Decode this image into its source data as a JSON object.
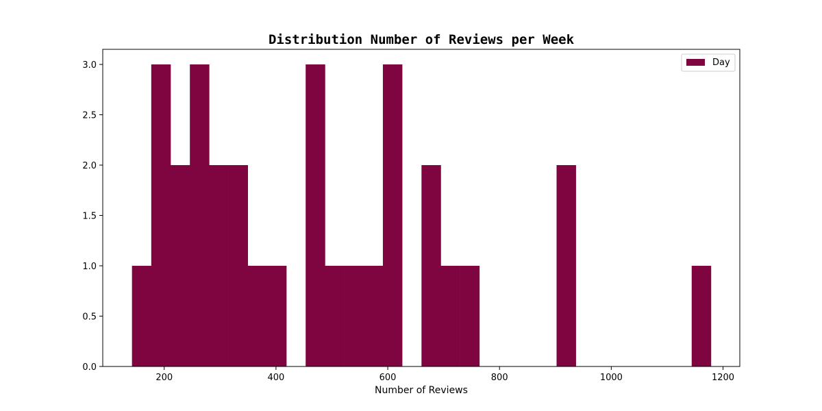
{
  "chart_data": {
    "type": "bar",
    "title": "Distribution Number of Reviews per Week",
    "xlabel": "Number of Reviews",
    "ylabel": "",
    "xlim": [
      90,
      1230
    ],
    "ylim": [
      0,
      3.15
    ],
    "x_ticks": [
      200,
      400,
      600,
      800,
      1000,
      1200
    ],
    "y_ticks": [
      0.0,
      0.5,
      1.0,
      1.5,
      2.0,
      2.5,
      3.0
    ],
    "x_tick_labels": [
      "200",
      "400",
      "600",
      "800",
      "1000",
      "1200"
    ],
    "y_tick_labels": [
      "0.0",
      "0.5",
      "1.0",
      "1.5",
      "2.0",
      "2.5",
      "3.0"
    ],
    "grid": false,
    "legend_position": "top-right",
    "series": [
      {
        "name": "Day",
        "color": "#7f0540",
        "bins": [
          {
            "x0": 142.3,
            "x1": 176.8,
            "count": 1
          },
          {
            "x0": 176.8,
            "x1": 211.4,
            "count": 3
          },
          {
            "x0": 211.4,
            "x1": 245.9,
            "count": 2
          },
          {
            "x0": 245.9,
            "x1": 280.4,
            "count": 3
          },
          {
            "x0": 280.4,
            "x1": 315.0,
            "count": 2
          },
          {
            "x0": 315.0,
            "x1": 349.5,
            "count": 2
          },
          {
            "x0": 349.5,
            "x1": 384.1,
            "count": 1
          },
          {
            "x0": 384.1,
            "x1": 418.6,
            "count": 1
          },
          {
            "x0": 418.6,
            "x1": 453.1,
            "count": 0
          },
          {
            "x0": 453.1,
            "x1": 487.7,
            "count": 3
          },
          {
            "x0": 487.7,
            "x1": 522.2,
            "count": 1
          },
          {
            "x0": 522.2,
            "x1": 556.7,
            "count": 1
          },
          {
            "x0": 556.7,
            "x1": 591.3,
            "count": 1
          },
          {
            "x0": 591.3,
            "x1": 625.8,
            "count": 3
          },
          {
            "x0": 625.8,
            "x1": 660.4,
            "count": 0
          },
          {
            "x0": 660.4,
            "x1": 694.9,
            "count": 2
          },
          {
            "x0": 694.9,
            "x1": 729.4,
            "count": 1
          },
          {
            "x0": 729.4,
            "x1": 764.0,
            "count": 1
          },
          {
            "x0": 764.0,
            "x1": 798.5,
            "count": 0
          },
          {
            "x0": 798.5,
            "x1": 833.0,
            "count": 0
          },
          {
            "x0": 833.0,
            "x1": 867.6,
            "count": 0
          },
          {
            "x0": 867.6,
            "x1": 902.1,
            "count": 0
          },
          {
            "x0": 902.1,
            "x1": 936.6,
            "count": 2
          },
          {
            "x0": 936.6,
            "x1": 971.2,
            "count": 0
          },
          {
            "x0": 971.2,
            "x1": 1005.7,
            "count": 0
          },
          {
            "x0": 1005.7,
            "x1": 1040.3,
            "count": 0
          },
          {
            "x0": 1040.3,
            "x1": 1074.8,
            "count": 0
          },
          {
            "x0": 1074.8,
            "x1": 1109.3,
            "count": 0
          },
          {
            "x0": 1109.3,
            "x1": 1143.9,
            "count": 0
          },
          {
            "x0": 1143.9,
            "x1": 1178.4,
            "count": 1
          }
        ]
      }
    ]
  }
}
